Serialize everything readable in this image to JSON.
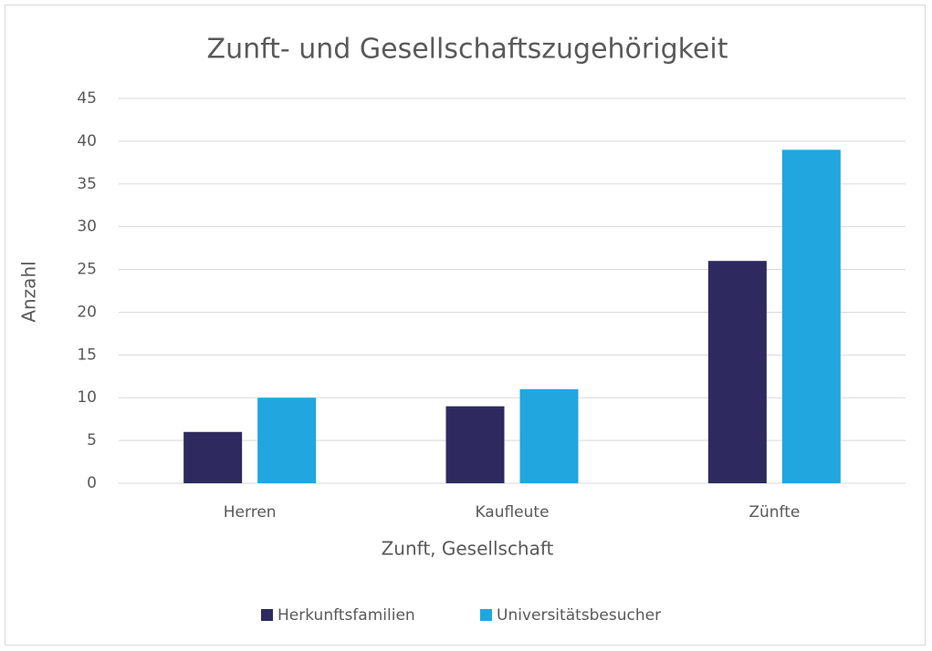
{
  "chart_data": {
    "type": "bar",
    "title": "Zunft- und Gesellschaftszugehörigkeit",
    "x_label": "Zunft, Gesellschaft",
    "y_label": "Anzahl",
    "categories": [
      "Herren",
      "Kaufleute",
      "Zünfte"
    ],
    "series": [
      {
        "name": "Herkunftsfamilien",
        "color": "#2e2a5f",
        "values": [
          6,
          9,
          26
        ]
      },
      {
        "name": "Universitätsbesucher",
        "color": "#22a6df",
        "values": [
          10,
          11,
          39
        ]
      }
    ],
    "ylim": [
      0,
      45
    ],
    "yticks": [
      0,
      5,
      10,
      15,
      20,
      25,
      30,
      35,
      40,
      45
    ],
    "grid": true,
    "legend": "bottom"
  }
}
